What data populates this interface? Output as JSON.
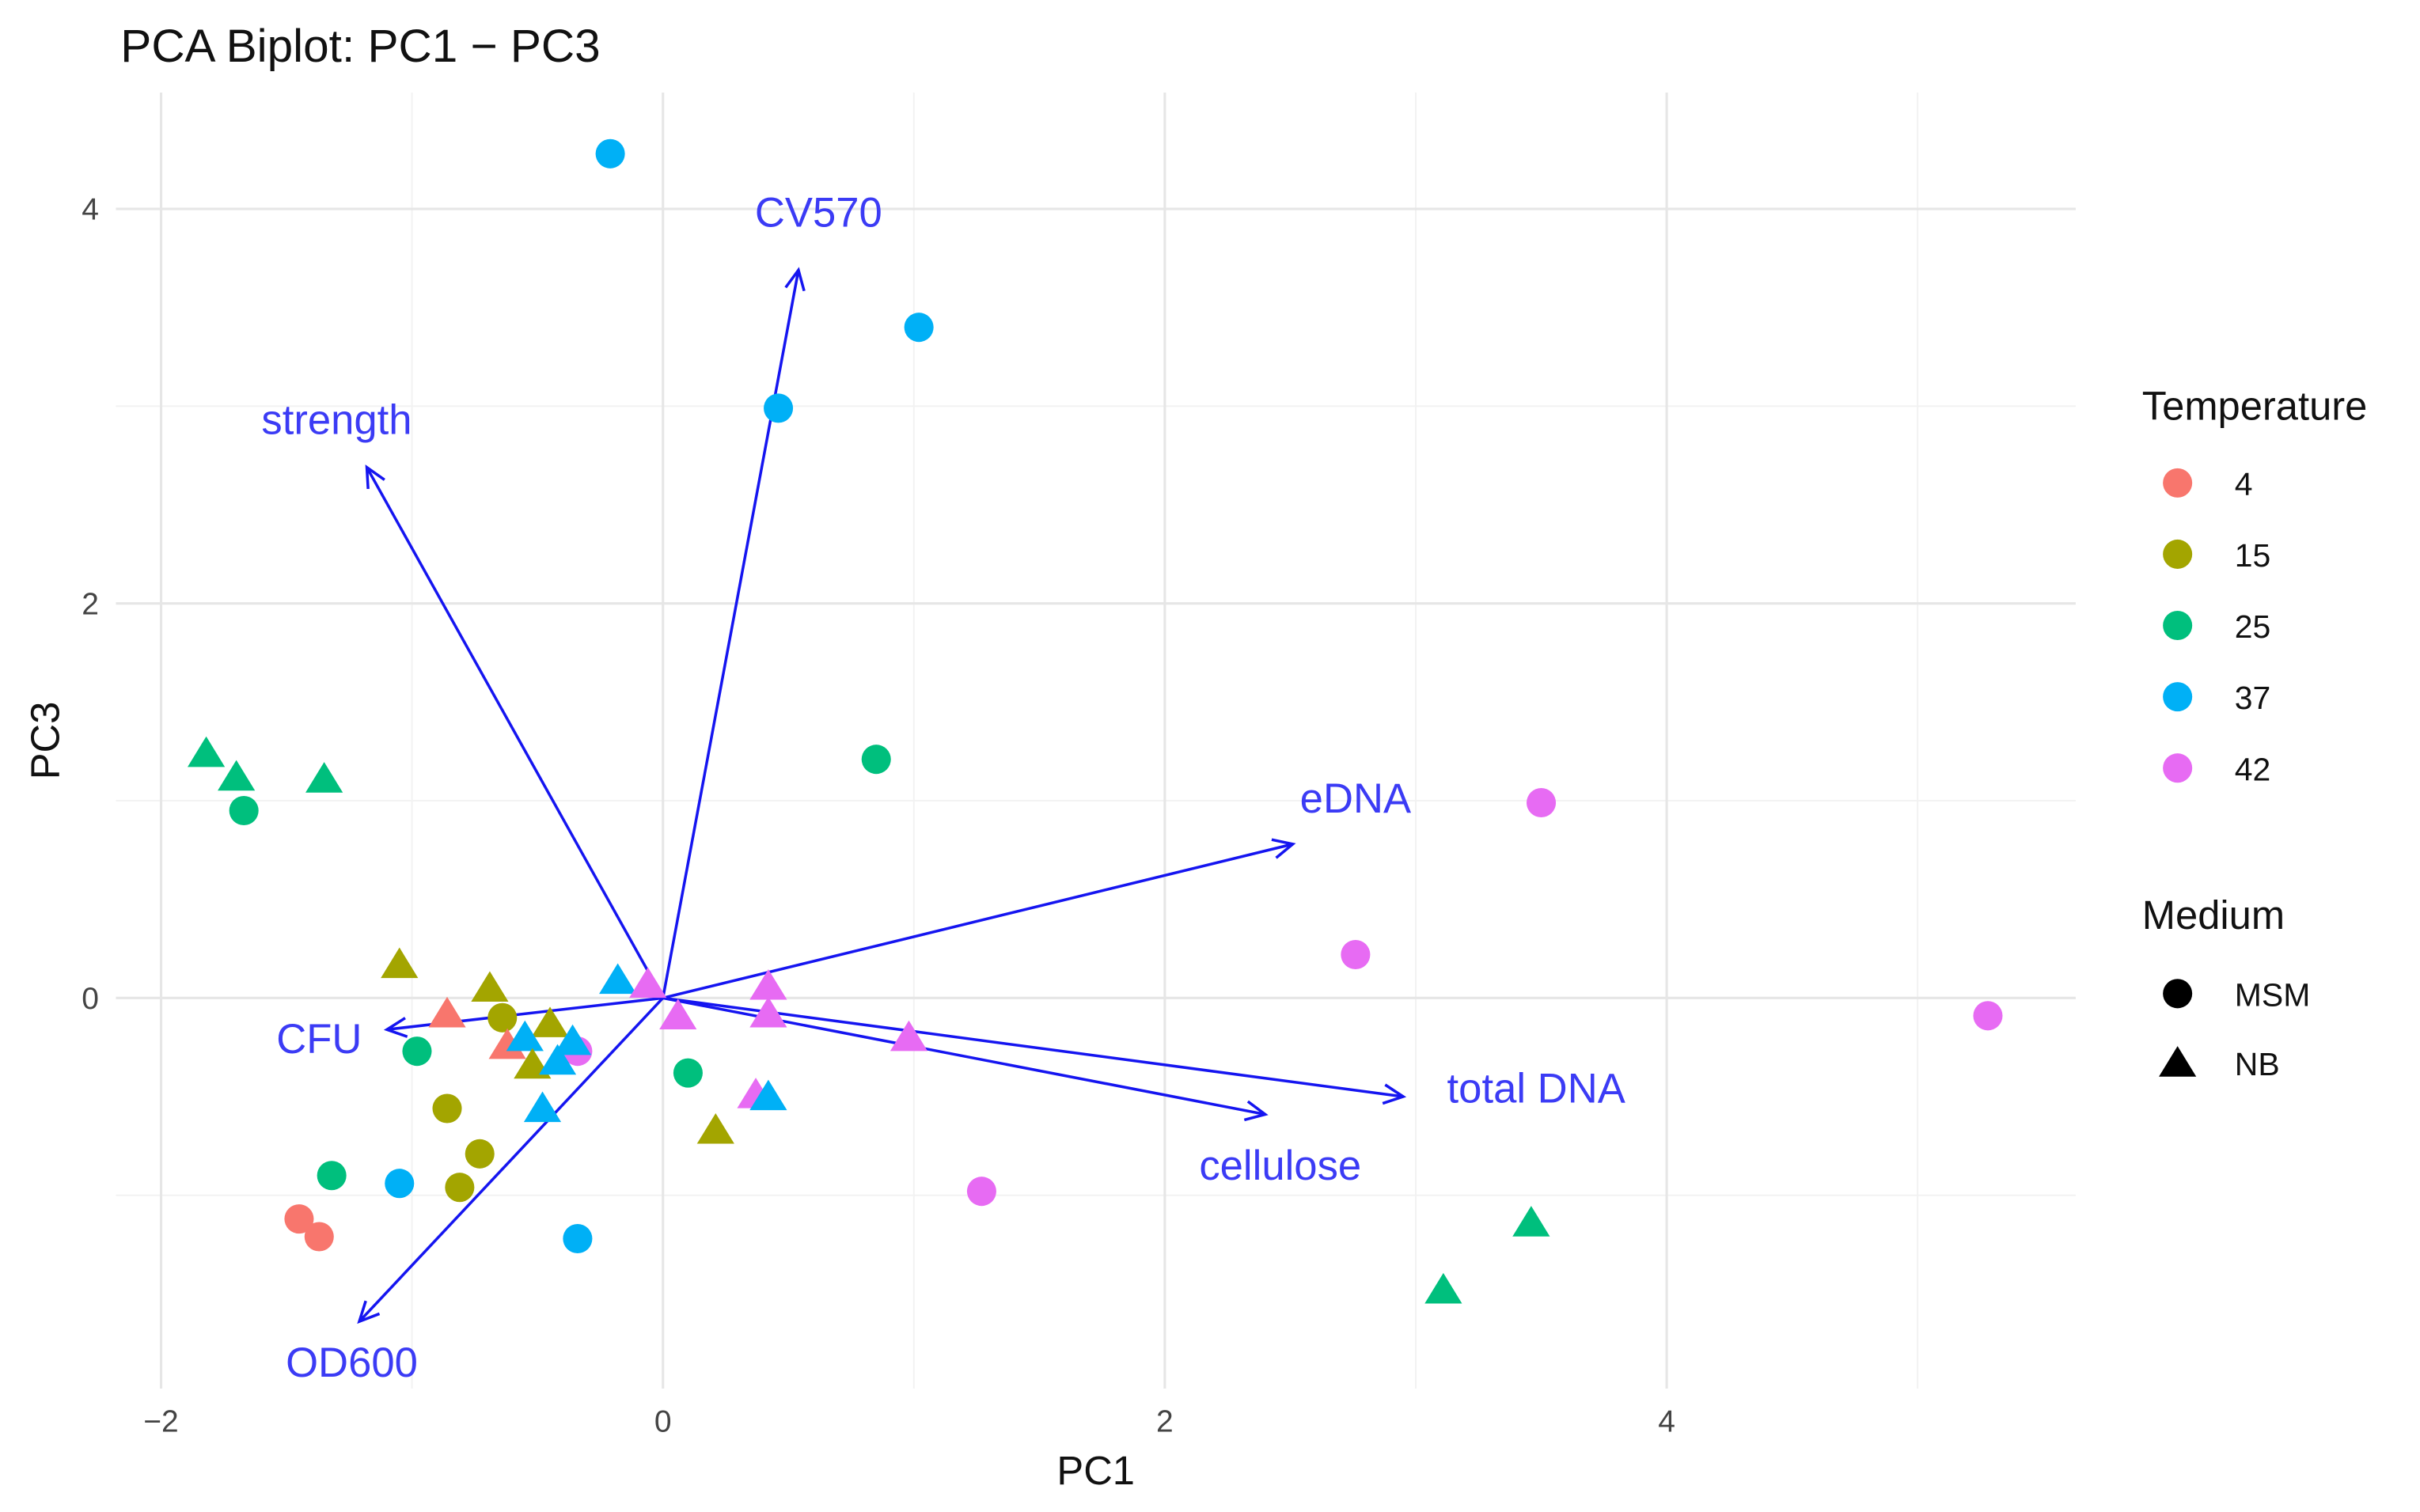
{
  "chart_data": {
    "type": "scatter",
    "title": "PCA Biplot: PC1 − PC3",
    "xlabel": "PC1",
    "ylabel": "PC3",
    "xlim": [
      -2.18,
      5.63
    ],
    "ylim": [
      -1.98,
      4.59
    ],
    "xticks": [
      {
        "v": -2,
        "label": "−2"
      },
      {
        "v": 0,
        "label": "0"
      },
      {
        "v": 2,
        "label": "2"
      },
      {
        "v": 4,
        "label": "4"
      }
    ],
    "yticks": [
      {
        "v": 0,
        "label": "0"
      },
      {
        "v": 2,
        "label": "2"
      },
      {
        "v": 4,
        "label": "4"
      }
    ],
    "minor_x": [
      -1,
      1,
      3,
      5
    ],
    "minor_y": [
      -1,
      1,
      3
    ],
    "grid": true,
    "legend": {
      "placement": "right",
      "color_title": "Temperature",
      "colors": [
        {
          "label": "4",
          "color": "#F8766D"
        },
        {
          "label": "15",
          "color": "#A3A500"
        },
        {
          "label": "25",
          "color": "#00BF7D"
        },
        {
          "label": "37",
          "color": "#00B0F6"
        },
        {
          "label": "42",
          "color": "#E76BF3"
        }
      ],
      "shape_title": "Medium",
      "shapes": [
        {
          "label": "MSM",
          "shape": "circle"
        },
        {
          "label": "NB",
          "shape": "triangle"
        }
      ]
    },
    "arrow_color": "#1515F0",
    "arrow_label_color": "#3B3BF5",
    "loadings": [
      {
        "name": "CV570",
        "x": 0.54,
        "y": 3.69,
        "lx": 0.62,
        "ly": 3.98
      },
      {
        "name": "strength",
        "x": -1.18,
        "y": 2.69,
        "lx": -1.3,
        "ly": 2.93
      },
      {
        "name": "eDNA",
        "x": 2.51,
        "y": 0.78,
        "lx": 2.76,
        "ly": 1.01
      },
      {
        "name": "total DNA",
        "x": 2.95,
        "y": -0.5,
        "lx": 3.48,
        "ly": -0.46
      },
      {
        "name": "cellulose",
        "x": 2.4,
        "y": -0.59,
        "lx": 2.46,
        "ly": -0.85
      },
      {
        "name": "CFU",
        "x": -1.1,
        "y": -0.16,
        "lx": -1.37,
        "ly": -0.21
      },
      {
        "name": "OD600",
        "x": -1.21,
        "y": -1.64,
        "lx": -1.24,
        "ly": -1.85
      }
    ],
    "points": [
      {
        "x": -0.21,
        "y": 4.28,
        "t": "37",
        "m": "MSM"
      },
      {
        "x": 1.02,
        "y": 3.4,
        "t": "37",
        "m": "MSM"
      },
      {
        "x": 0.46,
        "y": 2.99,
        "t": "37",
        "m": "MSM"
      },
      {
        "x": 0.85,
        "y": 1.21,
        "t": "25",
        "m": "MSM"
      },
      {
        "x": -1.67,
        "y": 0.95,
        "t": "25",
        "m": "MSM"
      },
      {
        "x": 3.5,
        "y": 0.99,
        "t": "42",
        "m": "MSM"
      },
      {
        "x": 2.76,
        "y": 0.22,
        "t": "42",
        "m": "MSM"
      },
      {
        "x": 5.28,
        "y": -0.09,
        "t": "42",
        "m": "MSM"
      },
      {
        "x": 1.27,
        "y": -0.98,
        "t": "42",
        "m": "MSM"
      },
      {
        "x": -0.34,
        "y": -0.27,
        "t": "42",
        "m": "MSM"
      },
      {
        "x": -0.98,
        "y": -0.27,
        "t": "25",
        "m": "MSM"
      },
      {
        "x": 0.1,
        "y": -0.38,
        "t": "25",
        "m": "MSM"
      },
      {
        "x": -0.64,
        "y": -0.1,
        "t": "15",
        "m": "MSM"
      },
      {
        "x": -0.86,
        "y": -0.56,
        "t": "15",
        "m": "MSM"
      },
      {
        "x": -0.73,
        "y": -0.79,
        "t": "15",
        "m": "MSM"
      },
      {
        "x": -0.81,
        "y": -0.96,
        "t": "15",
        "m": "MSM"
      },
      {
        "x": -1.32,
        "y": -0.9,
        "t": "25",
        "m": "MSM"
      },
      {
        "x": -1.05,
        "y": -0.94,
        "t": "37",
        "m": "MSM"
      },
      {
        "x": -0.34,
        "y": -1.22,
        "t": "37",
        "m": "MSM"
      },
      {
        "x": -1.45,
        "y": -1.12,
        "t": "4",
        "m": "MSM"
      },
      {
        "x": -1.37,
        "y": -1.21,
        "t": "4",
        "m": "MSM"
      },
      {
        "x": -1.82,
        "y": 1.24,
        "t": "25",
        "m": "NB"
      },
      {
        "x": -1.7,
        "y": 1.12,
        "t": "25",
        "m": "NB"
      },
      {
        "x": -1.35,
        "y": 1.11,
        "t": "25",
        "m": "NB"
      },
      {
        "x": -1.05,
        "y": 0.17,
        "t": "15",
        "m": "NB"
      },
      {
        "x": -0.69,
        "y": 0.05,
        "t": "15",
        "m": "NB"
      },
      {
        "x": -0.86,
        "y": -0.08,
        "t": "4",
        "m": "NB"
      },
      {
        "x": -0.18,
        "y": 0.09,
        "t": "37",
        "m": "NB"
      },
      {
        "x": -0.06,
        "y": 0.07,
        "t": "42",
        "m": "NB"
      },
      {
        "x": 0.42,
        "y": 0.06,
        "t": "42",
        "m": "NB"
      },
      {
        "x": 0.42,
        "y": -0.08,
        "t": "42",
        "m": "NB"
      },
      {
        "x": 0.06,
        "y": -0.09,
        "t": "42",
        "m": "NB"
      },
      {
        "x": -0.45,
        "y": -0.13,
        "t": "15",
        "m": "NB"
      },
      {
        "x": -0.62,
        "y": -0.24,
        "t": "4",
        "m": "NB"
      },
      {
        "x": -0.55,
        "y": -0.2,
        "t": "37",
        "m": "NB"
      },
      {
        "x": -0.36,
        "y": -0.22,
        "t": "37",
        "m": "NB"
      },
      {
        "x": -0.52,
        "y": -0.34,
        "t": "15",
        "m": "NB"
      },
      {
        "x": -0.42,
        "y": -0.32,
        "t": "37",
        "m": "NB"
      },
      {
        "x": -0.48,
        "y": -0.56,
        "t": "37",
        "m": "NB"
      },
      {
        "x": 0.98,
        "y": -0.2,
        "t": "42",
        "m": "NB"
      },
      {
        "x": 0.37,
        "y": -0.49,
        "t": "42",
        "m": "NB"
      },
      {
        "x": 0.42,
        "y": -0.5,
        "t": "37",
        "m": "NB"
      },
      {
        "x": 0.21,
        "y": -0.67,
        "t": "15",
        "m": "NB"
      },
      {
        "x": 3.46,
        "y": -1.14,
        "t": "25",
        "m": "NB"
      },
      {
        "x": 3.11,
        "y": -1.48,
        "t": "25",
        "m": "NB"
      }
    ]
  }
}
